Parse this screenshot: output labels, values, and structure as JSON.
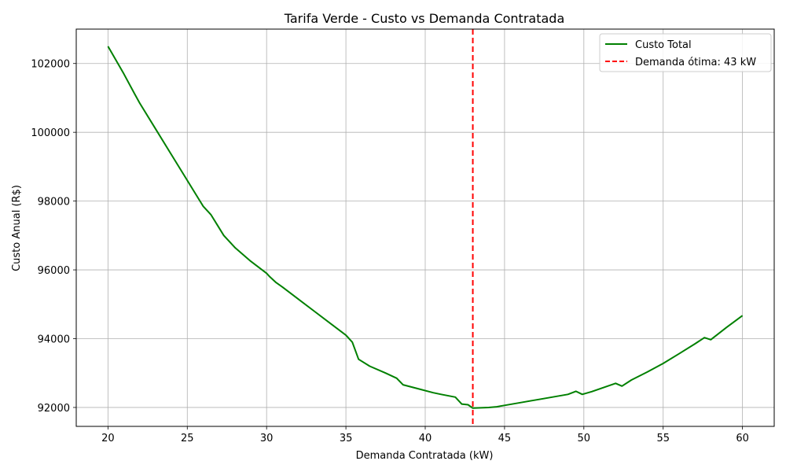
{
  "chart_data": {
    "type": "line",
    "title": "Tarifa Verde - Custo vs Demanda Contratada",
    "xlabel": "Demanda Contratada (kW)",
    "ylabel": "Custo Anual (R$)",
    "xlim": [
      18,
      62
    ],
    "ylim": [
      91450,
      103000
    ],
    "xticks": [
      20,
      25,
      30,
      35,
      40,
      45,
      50,
      55,
      60
    ],
    "yticks": [
      92000,
      94000,
      96000,
      98000,
      100000,
      102000
    ],
    "grid": true,
    "legend_position": "top-right",
    "series": [
      {
        "name": "Custo Total",
        "color": "#008000",
        "style": "solid",
        "x": [
          20,
          21,
          21.7,
          22,
          23,
          24,
          25,
          26,
          26.5,
          26.9,
          27.3,
          28,
          29,
          30,
          30.2,
          30.6,
          31,
          32,
          33,
          34,
          35,
          35.4,
          35.8,
          36.5,
          37.5,
          38.2,
          38.6,
          39.5,
          40.5,
          41,
          41.9,
          42.3,
          42.7,
          43,
          43.5,
          44,
          44.5,
          45,
          46,
          47,
          48,
          49,
          49.5,
          49.9,
          50.5,
          51,
          52,
          52.4,
          53,
          54,
          55,
          56,
          57,
          57.6,
          58,
          59,
          60
        ],
        "y": [
          102500,
          101700,
          101100,
          100850,
          100100,
          99350,
          98600,
          97850,
          97600,
          97300,
          97000,
          96650,
          96250,
          95900,
          95800,
          95630,
          95500,
          95150,
          94800,
          94450,
          94100,
          93900,
          93400,
          93200,
          93000,
          92850,
          92660,
          92550,
          92430,
          92380,
          92300,
          92100,
          92080,
          91980,
          91990,
          92000,
          92020,
          92060,
          92140,
          92220,
          92300,
          92380,
          92470,
          92380,
          92460,
          92540,
          92700,
          92620,
          92800,
          93030,
          93280,
          93560,
          93850,
          94030,
          93970,
          94330,
          94670
        ]
      },
      {
        "name": "Demanda ótima: 43 kW",
        "color": "#ff0000",
        "style": "dashed",
        "vline_x": 43
      }
    ]
  }
}
